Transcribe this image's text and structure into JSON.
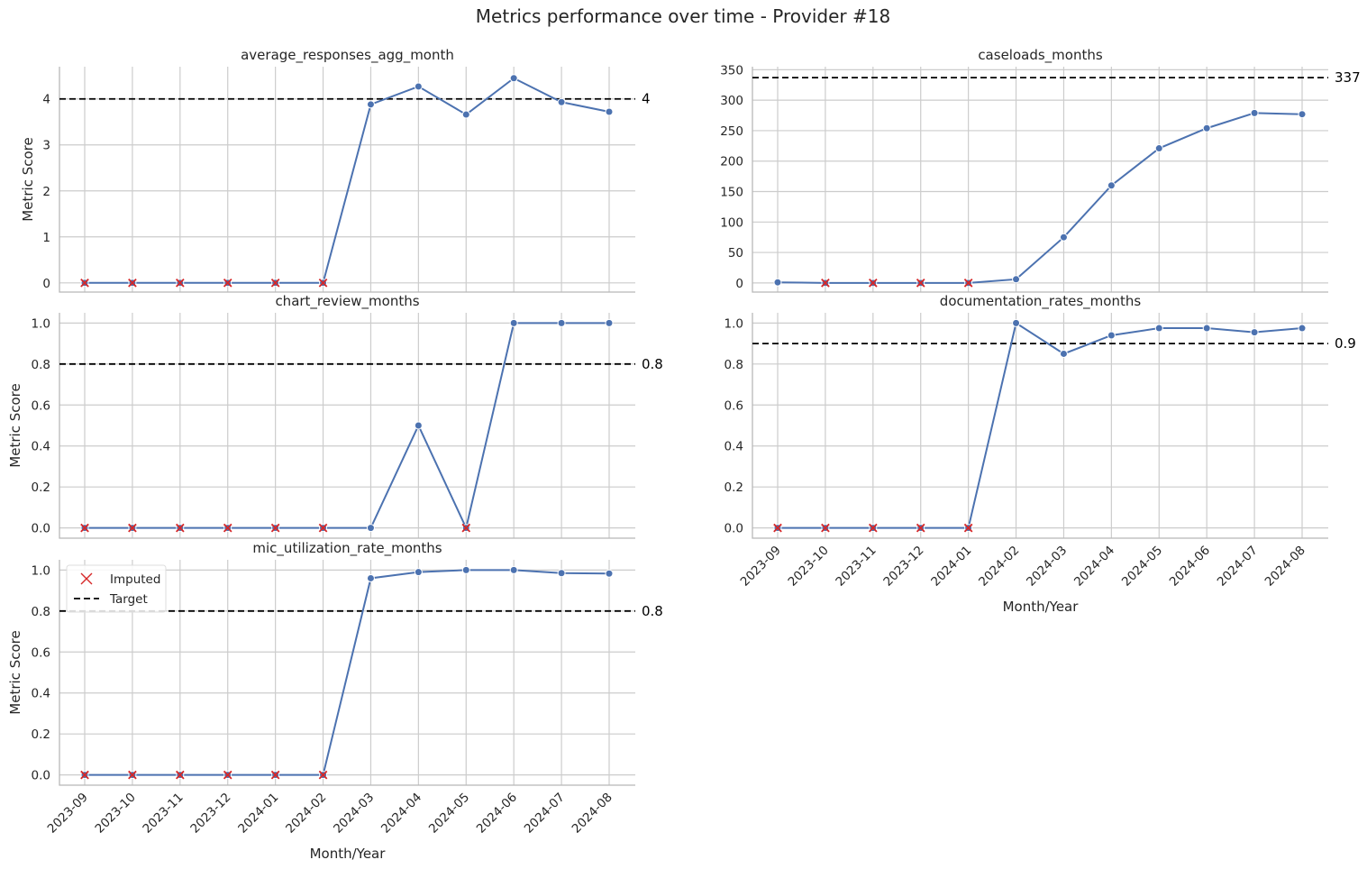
{
  "title": "Metrics performance over time - Provider #18",
  "xlabel": "Month/Year",
  "ylabel": "Metric Score",
  "legend": {
    "imputed_label": "Imputed",
    "target_label": "Target"
  },
  "colors": {
    "line": "#4c72b0",
    "imputed": "#d62728",
    "target": "#000000"
  },
  "chart_data": [
    {
      "type": "line",
      "title": "average_responses_agg_month",
      "x": [
        "2023-09",
        "2023-10",
        "2023-11",
        "2023-12",
        "2024-01",
        "2024-02",
        "2024-03",
        "2024-04",
        "2024-05",
        "2024-06",
        "2024-07",
        "2024-08"
      ],
      "values": [
        0,
        0,
        0,
        0,
        0,
        0,
        3.88,
        4.27,
        3.66,
        4.45,
        3.93,
        3.72
      ],
      "imputed": [
        true,
        true,
        true,
        true,
        true,
        true,
        false,
        false,
        false,
        false,
        false,
        false
      ],
      "target": 4,
      "target_label": "4",
      "ylim": [
        -0.2,
        4.7
      ],
      "yticks": [
        0,
        1,
        2,
        3,
        4
      ],
      "ytick_labels": [
        "0",
        "1",
        "2",
        "3",
        "4"
      ],
      "ylabel": "Metric Score",
      "xlabel": "",
      "xticklabels_shown": false,
      "legend": false,
      "grid": true
    },
    {
      "type": "line",
      "title": "caseloads_months",
      "x": [
        "2023-09",
        "2023-10",
        "2023-11",
        "2023-12",
        "2024-01",
        "2024-02",
        "2024-03",
        "2024-04",
        "2024-05",
        "2024-06",
        "2024-07",
        "2024-08"
      ],
      "values": [
        1,
        0,
        0,
        0,
        0,
        6,
        75,
        160,
        221,
        254,
        279,
        277
      ],
      "imputed": [
        false,
        true,
        true,
        true,
        true,
        false,
        false,
        false,
        false,
        false,
        false,
        false
      ],
      "target": 337,
      "target_label": "337",
      "ylim": [
        -15,
        355
      ],
      "yticks": [
        0,
        50,
        100,
        150,
        200,
        250,
        300,
        350
      ],
      "ytick_labels": [
        "0",
        "50",
        "100",
        "150",
        "200",
        "250",
        "300",
        "350"
      ],
      "ylabel": "",
      "xlabel": "",
      "xticklabels_shown": false,
      "legend": false,
      "grid": true
    },
    {
      "type": "line",
      "title": "chart_review_months",
      "x": [
        "2023-09",
        "2023-10",
        "2023-11",
        "2023-12",
        "2024-01",
        "2024-02",
        "2024-03",
        "2024-04",
        "2024-05",
        "2024-06",
        "2024-07",
        "2024-08"
      ],
      "values": [
        0,
        0,
        0,
        0,
        0,
        0,
        0,
        0.5,
        0,
        1.0,
        1.0,
        1.0
      ],
      "imputed": [
        true,
        true,
        true,
        true,
        true,
        true,
        false,
        false,
        true,
        false,
        false,
        false
      ],
      "target": 0.8,
      "target_label": "0.8",
      "ylim": [
        -0.05,
        1.05
      ],
      "yticks": [
        0,
        0.2,
        0.4,
        0.6,
        0.8,
        1.0
      ],
      "ytick_labels": [
        "0.0",
        "0.2",
        "0.4",
        "0.6",
        "0.8",
        "1.0"
      ],
      "ylabel": "Metric Score",
      "xlabel": "",
      "xticklabels_shown": false,
      "legend": false,
      "grid": true
    },
    {
      "type": "line",
      "title": "documentation_rates_months",
      "x": [
        "2023-09",
        "2023-10",
        "2023-11",
        "2023-12",
        "2024-01",
        "2024-02",
        "2024-03",
        "2024-04",
        "2024-05",
        "2024-06",
        "2024-07",
        "2024-08"
      ],
      "values": [
        0,
        0,
        0,
        0,
        0,
        1.0,
        0.85,
        0.94,
        0.975,
        0.975,
        0.955,
        0.975
      ],
      "imputed": [
        true,
        true,
        true,
        true,
        true,
        false,
        false,
        false,
        false,
        false,
        false,
        false
      ],
      "target": 0.9,
      "target_label": "0.9",
      "ylim": [
        -0.05,
        1.05
      ],
      "yticks": [
        0,
        0.2,
        0.4,
        0.6,
        0.8,
        1.0
      ],
      "ytick_labels": [
        "0.0",
        "0.2",
        "0.4",
        "0.6",
        "0.8",
        "1.0"
      ],
      "ylabel": "",
      "xlabel": "Month/Year",
      "xticklabels_shown": true,
      "legend": false,
      "grid": true
    },
    {
      "type": "line",
      "title": "mic_utilization_rate_months",
      "x": [
        "2023-09",
        "2023-10",
        "2023-11",
        "2023-12",
        "2024-01",
        "2024-02",
        "2024-03",
        "2024-04",
        "2024-05",
        "2024-06",
        "2024-07",
        "2024-08"
      ],
      "values": [
        0,
        0,
        0,
        0,
        0,
        0,
        0.96,
        0.99,
        1.0,
        1.0,
        0.985,
        0.983
      ],
      "imputed": [
        true,
        true,
        true,
        true,
        true,
        true,
        false,
        false,
        false,
        false,
        false,
        false
      ],
      "target": 0.8,
      "target_label": "0.8",
      "ylim": [
        -0.05,
        1.05
      ],
      "yticks": [
        0,
        0.2,
        0.4,
        0.6,
        0.8,
        1.0
      ],
      "ytick_labels": [
        "0.0",
        "0.2",
        "0.4",
        "0.6",
        "0.8",
        "1.0"
      ],
      "ylabel": "Metric Score",
      "xlabel": "Month/Year",
      "xticklabels_shown": true,
      "legend": "upper left",
      "grid": true
    }
  ]
}
